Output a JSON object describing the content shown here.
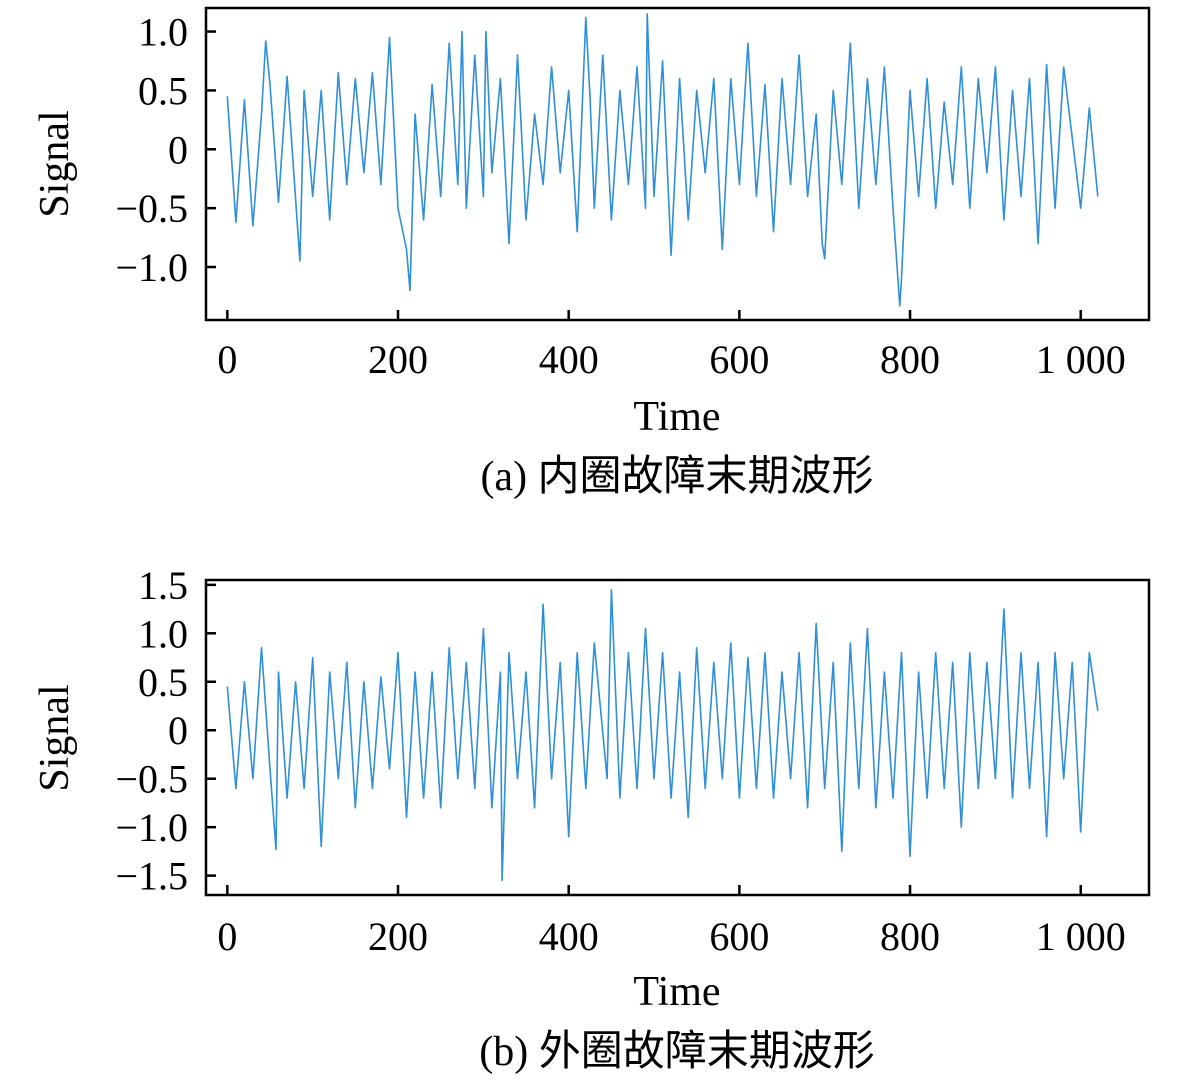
{
  "chart_data": [
    {
      "type": "line",
      "xlabel": "Time",
      "ylabel": "Signal",
      "xlim": [
        -25,
        1080
      ],
      "ylim": [
        -1.45,
        1.2
      ],
      "xticks": [
        0,
        200,
        400,
        600,
        800,
        1000
      ],
      "xtick_labels": [
        "0",
        "200",
        "400",
        "600",
        "800",
        "1 000"
      ],
      "yticks": [
        1.0,
        0.5,
        0,
        -0.5,
        -1.0
      ],
      "ytick_labels": [
        "1.0",
        "0.5",
        "0",
        "−0.5",
        "−1.0"
      ],
      "caption": "(a) 内圈故障末期波形",
      "color": "#2f8fd8",
      "series": [
        {
          "x": [
            0,
            10,
            20,
            30,
            40,
            45,
            50,
            60,
            70,
            85,
            90,
            100,
            110,
            120,
            130,
            140,
            150,
            160,
            170,
            180,
            190,
            200,
            210,
            214,
            220,
            230,
            240,
            250,
            260,
            270,
            275,
            280,
            290,
            300,
            303,
            310,
            320,
            330,
            340,
            350,
            360,
            370,
            380,
            390,
            400,
            410,
            420,
            425,
            430,
            440,
            450,
            460,
            470,
            480,
            490,
            492,
            500,
            510,
            520,
            530,
            540,
            550,
            560,
            570,
            580,
            590,
            600,
            610,
            620,
            630,
            640,
            650,
            660,
            670,
            680,
            690,
            697,
            700,
            710,
            720,
            730,
            740,
            750,
            760,
            770,
            780,
            788,
            790,
            800,
            810,
            820,
            830,
            840,
            850,
            860,
            870,
            880,
            890,
            900,
            910,
            920,
            930,
            940,
            950,
            960,
            970,
            980,
            1000,
            1010,
            1020
          ],
          "y": [
            0.45,
            -0.62,
            0.42,
            -0.65,
            0.3,
            0.92,
            0.55,
            -0.45,
            0.62,
            -0.95,
            0.5,
            -0.4,
            0.5,
            -0.6,
            0.65,
            -0.3,
            0.6,
            -0.2,
            0.65,
            -0.3,
            0.95,
            -0.5,
            -0.85,
            -1.2,
            0.3,
            -0.6,
            0.55,
            -0.4,
            0.9,
            -0.3,
            1.0,
            -0.5,
            0.8,
            -0.4,
            1.0,
            -0.2,
            0.6,
            -0.8,
            0.8,
            -0.6,
            0.3,
            -0.3,
            0.7,
            -0.2,
            0.5,
            -0.7,
            1.12,
            0.45,
            -0.5,
            0.8,
            -0.6,
            0.5,
            -0.3,
            0.7,
            -0.5,
            1.15,
            -0.4,
            0.75,
            -0.9,
            0.6,
            -0.6,
            0.5,
            -0.2,
            0.6,
            -0.85,
            0.6,
            -0.3,
            0.9,
            -0.4,
            0.55,
            -0.7,
            0.6,
            -0.3,
            0.8,
            -0.4,
            0.3,
            -0.8,
            -0.93,
            0.5,
            -0.3,
            0.9,
            -0.5,
            0.6,
            -0.3,
            0.7,
            -0.5,
            -1.33,
            -1.1,
            0.5,
            -0.4,
            0.6,
            -0.5,
            0.4,
            -0.3,
            0.7,
            -0.5,
            0.6,
            -0.2,
            0.7,
            -0.6,
            0.5,
            -0.4,
            0.6,
            -0.8,
            0.72,
            -0.5,
            0.7,
            -0.5,
            0.35,
            -0.4
          ]
        }
      ]
    },
    {
      "type": "line",
      "xlabel": "Time",
      "ylabel": "Signal",
      "xlim": [
        -25,
        1080
      ],
      "ylim": [
        -1.7,
        1.55
      ],
      "xticks": [
        0,
        200,
        400,
        600,
        800,
        1000
      ],
      "xtick_labels": [
        "0",
        "200",
        "400",
        "600",
        "800",
        "1 000"
      ],
      "yticks": [
        1.5,
        1.0,
        0.5,
        0,
        -0.5,
        -1.0,
        -1.5
      ],
      "ytick_labels": [
        "1.5",
        "1.0",
        "0.5",
        "0",
        "−0.5",
        "−1.0",
        "−1.5"
      ],
      "caption": "(b) 外圈故障末期波形",
      "color": "#2f8fd8",
      "series": [
        {
          "x": [
            0,
            10,
            20,
            30,
            40,
            50,
            57,
            60,
            70,
            80,
            90,
            100,
            110,
            120,
            130,
            140,
            150,
            160,
            170,
            180,
            190,
            200,
            210,
            220,
            230,
            240,
            250,
            260,
            270,
            280,
            290,
            300,
            310,
            320,
            322,
            330,
            340,
            350,
            360,
            370,
            380,
            390,
            400,
            410,
            420,
            430,
            445,
            450,
            460,
            470,
            480,
            490,
            500,
            510,
            520,
            530,
            540,
            550,
            560,
            570,
            580,
            590,
            600,
            610,
            620,
            630,
            640,
            650,
            660,
            670,
            680,
            690,
            700,
            710,
            720,
            730,
            740,
            750,
            760,
            770,
            780,
            790,
            800,
            810,
            820,
            830,
            840,
            850,
            860,
            870,
            880,
            890,
            900,
            910,
            920,
            930,
            940,
            950,
            960,
            970,
            980,
            990,
            1000,
            1010,
            1020
          ],
          "y": [
            0.45,
            -0.6,
            0.5,
            -0.5,
            0.85,
            -0.4,
            -1.23,
            0.6,
            -0.7,
            0.5,
            -0.6,
            0.75,
            -1.2,
            0.6,
            -0.5,
            0.7,
            -0.8,
            0.5,
            -0.6,
            0.55,
            -0.4,
            0.8,
            -0.9,
            0.6,
            -0.7,
            0.6,
            -0.8,
            0.85,
            -0.5,
            0.7,
            -0.6,
            1.05,
            -0.8,
            0.6,
            -1.55,
            0.8,
            -0.5,
            0.6,
            -0.8,
            1.3,
            -0.5,
            0.7,
            -1.1,
            0.8,
            -0.6,
            0.9,
            -0.5,
            1.45,
            -0.7,
            0.8,
            -0.6,
            1.05,
            -0.5,
            0.8,
            -0.7,
            0.6,
            -0.9,
            0.85,
            -0.6,
            0.7,
            -0.5,
            0.9,
            -0.7,
            0.75,
            -0.6,
            0.8,
            -0.7,
            0.6,
            -0.5,
            0.8,
            -0.8,
            1.1,
            -0.6,
            0.7,
            -1.25,
            0.9,
            -0.6,
            1.05,
            -0.8,
            0.6,
            -0.7,
            0.8,
            -1.3,
            0.6,
            -0.7,
            0.8,
            -0.6,
            0.7,
            -1.0,
            0.8,
            -0.6,
            0.7,
            -0.5,
            1.25,
            -0.7,
            0.8,
            -0.6,
            0.7,
            -1.1,
            0.8,
            -0.5,
            0.7,
            -1.05,
            0.8,
            0.2
          ]
        }
      ]
    }
  ]
}
